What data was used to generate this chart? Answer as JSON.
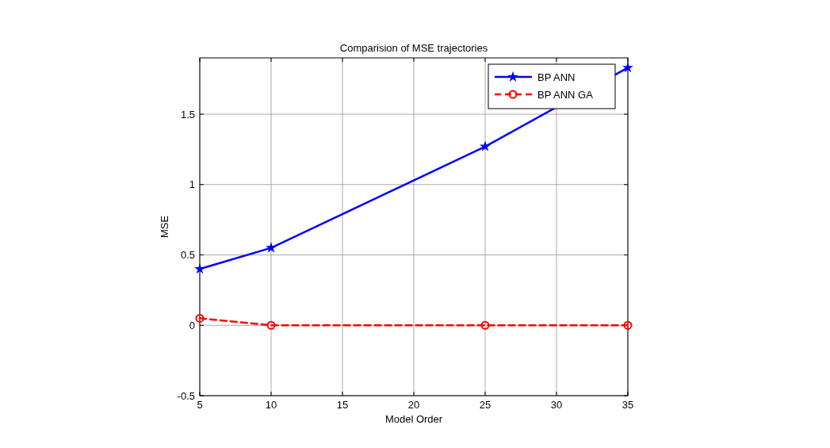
{
  "chart_data": {
    "type": "line",
    "title": "Comparision of MSE trajectories",
    "xlabel": "Model Order",
    "ylabel": "MSE",
    "x": [
      5,
      10,
      25,
      35
    ],
    "series": [
      {
        "name": "BP ANN",
        "color": "#0000ff",
        "values": [
          0.4,
          0.55,
          1.27,
          1.83
        ],
        "marker": "star",
        "line_style": "solid"
      },
      {
        "name": "BP ANN GA",
        "color": "#ff0000",
        "values": [
          0.05,
          0,
          0,
          0
        ],
        "marker": "circle",
        "line_style": "dashed"
      }
    ],
    "xlim": [
      5,
      35
    ],
    "xticks": [
      5,
      10,
      15,
      20,
      25,
      30,
      35
    ],
    "ylim": [
      -0.5,
      1.9
    ],
    "yticks": [
      -0.5,
      0,
      0.5,
      1,
      1.5
    ],
    "grid": true,
    "legend": "top right"
  }
}
